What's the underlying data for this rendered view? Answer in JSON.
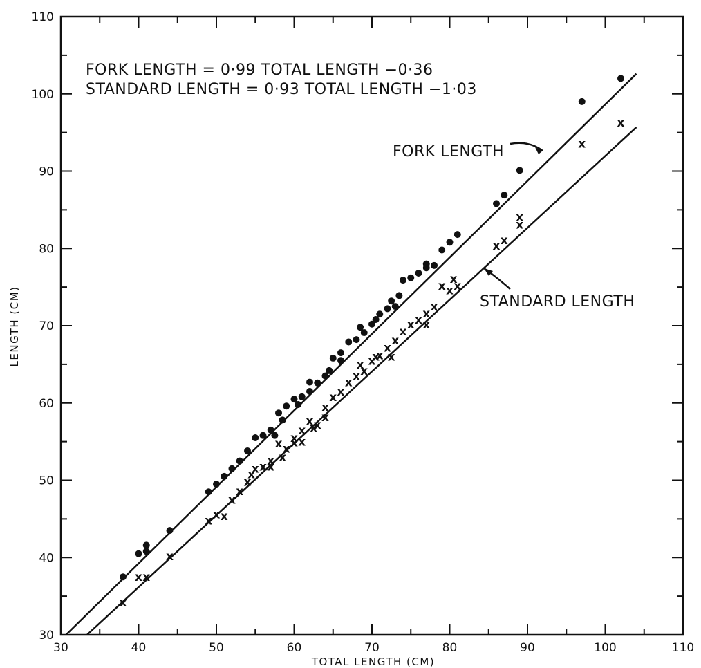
{
  "chart_data": {
    "type": "scatter",
    "xlabel": "TOTAL LENGTH (CM)",
    "ylabel": "LENGTH (CM)",
    "xlim": [
      30,
      110
    ],
    "ylim": [
      30,
      110
    ],
    "x_ticks": [
      "30",
      "40",
      "50",
      "60",
      "70",
      "80",
      "90",
      "100",
      "110"
    ],
    "y_ticks": [
      "30",
      "40",
      "50",
      "60",
      "70",
      "80",
      "90",
      "100",
      "110"
    ],
    "grid": false,
    "annotations": {
      "equation_fork": "FORK LENGTH = 0·99 TOTAL LENGTH −0·36",
      "equation_standard": "STANDARD LENGTH = 0·93 TOTAL LENGTH −1·03"
    },
    "series": [
      {
        "name": "FORK LENGTH",
        "marker": "dot",
        "line_color": "#111111",
        "regression": {
          "slope": 0.99,
          "intercept": -0.36
        },
        "points": [
          [
            38,
            37.5
          ],
          [
            40,
            40.5
          ],
          [
            41,
            40.8
          ],
          [
            41,
            41.6
          ],
          [
            44,
            43.5
          ],
          [
            49,
            48.5
          ],
          [
            50,
            49.5
          ],
          [
            51,
            50.5
          ],
          [
            52,
            51.5
          ],
          [
            53,
            52.5
          ],
          [
            54,
            53.8
          ],
          [
            55,
            55.5
          ],
          [
            56,
            55.8
          ],
          [
            57,
            56.5
          ],
          [
            57.5,
            55.8
          ],
          [
            58,
            58.7
          ],
          [
            58.5,
            57.8
          ],
          [
            59,
            59.6
          ],
          [
            60,
            60.5
          ],
          [
            60.5,
            59.8
          ],
          [
            61,
            60.8
          ],
          [
            62,
            62.7
          ],
          [
            62,
            61.5
          ],
          [
            63,
            62.6
          ],
          [
            64,
            63.5
          ],
          [
            64.5,
            64.2
          ],
          [
            65,
            65.8
          ],
          [
            66,
            65.5
          ],
          [
            66,
            66.5
          ],
          [
            67,
            67.9
          ],
          [
            68,
            68.2
          ],
          [
            68.5,
            69.8
          ],
          [
            69,
            69.1
          ],
          [
            70,
            70.2
          ],
          [
            70.5,
            70.8
          ],
          [
            71,
            71.5
          ],
          [
            72,
            72.2
          ],
          [
            72.5,
            73.2
          ],
          [
            73,
            72.5
          ],
          [
            73.5,
            73.9
          ],
          [
            74,
            75.9
          ],
          [
            75,
            76.2
          ],
          [
            76,
            76.8
          ],
          [
            77,
            77.5
          ],
          [
            77,
            78.0
          ],
          [
            78,
            77.8
          ],
          [
            79,
            79.8
          ],
          [
            80,
            80.8
          ],
          [
            81,
            81.8
          ],
          [
            86,
            85.8
          ],
          [
            87,
            86.9
          ],
          [
            89,
            90.1
          ],
          [
            97,
            99.0
          ],
          [
            102,
            102.0
          ]
        ]
      },
      {
        "name": "STANDARD LENGTH",
        "marker": "x",
        "line_color": "#111111",
        "regression": {
          "slope": 0.93,
          "intercept": -1.03
        },
        "points": [
          [
            38,
            34.2
          ],
          [
            40,
            37.5
          ],
          [
            41,
            37.5
          ],
          [
            44,
            40.2
          ],
          [
            49,
            44.8
          ],
          [
            50,
            45.6
          ],
          [
            51,
            45.4
          ],
          [
            52,
            47.5
          ],
          [
            53,
            48.6
          ],
          [
            54,
            49.8
          ],
          [
            54.5,
            50.8
          ],
          [
            55,
            51.5
          ],
          [
            56,
            51.8
          ],
          [
            57,
            52.6
          ],
          [
            57,
            51.8
          ],
          [
            58,
            54.8
          ],
          [
            58.5,
            53.0
          ],
          [
            59,
            54.1
          ],
          [
            60,
            55.5
          ],
          [
            60,
            54.9
          ],
          [
            61,
            56.5
          ],
          [
            61,
            55.0
          ],
          [
            62,
            57.7
          ],
          [
            62.5,
            56.8
          ],
          [
            63,
            57.2
          ],
          [
            64,
            59.5
          ],
          [
            64,
            58.2
          ],
          [
            65,
            60.8
          ],
          [
            66,
            61.5
          ],
          [
            67,
            62.7
          ],
          [
            68,
            63.5
          ],
          [
            68.5,
            65.0
          ],
          [
            69,
            64.2
          ],
          [
            70,
            65.5
          ],
          [
            70.5,
            66.0
          ],
          [
            71,
            66.2
          ],
          [
            72,
            67.2
          ],
          [
            72.5,
            66.0
          ],
          [
            73,
            68.1
          ],
          [
            74,
            69.3
          ],
          [
            75,
            70.2
          ],
          [
            76,
            70.8
          ],
          [
            77,
            71.6
          ],
          [
            77,
            70.2
          ],
          [
            78,
            72.5
          ],
          [
            79,
            75.2
          ],
          [
            80,
            74.6
          ],
          [
            80.5,
            76.1
          ],
          [
            81,
            75.2
          ],
          [
            86,
            80.4
          ],
          [
            87,
            81.1
          ],
          [
            89,
            84.1
          ],
          [
            89,
            83.1
          ],
          [
            97,
            93.6
          ],
          [
            102,
            96.3
          ]
        ]
      }
    ]
  }
}
